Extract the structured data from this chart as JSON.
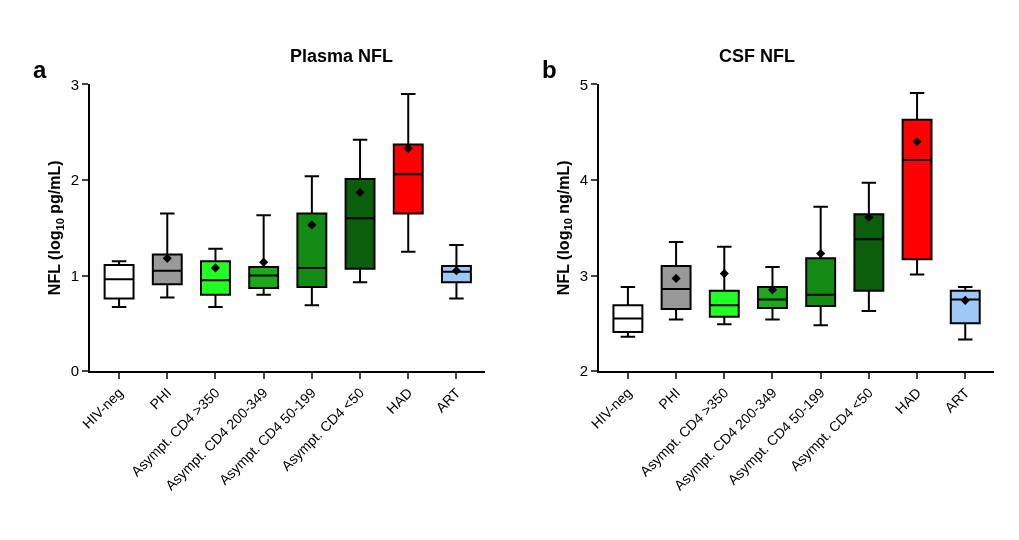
{
  "chart_data": [
    {
      "type": "box",
      "title": "Plasma NFL",
      "ylabel": "NFL (log$_{10}$ pg/mL)",
      "annotations": [
        "a"
      ],
      "categories": [
        "HIV-neg",
        "PHI",
        "Asympt. CD4 >350",
        "Asympt. CD4 200-349",
        "Asympt. CD4 50-199",
        "Asympt. CD4 <50",
        "HAD",
        "ART"
      ],
      "colors": [
        "#ffffff",
        "#999999",
        "#22ff22",
        "#1ea81e",
        "#138a13",
        "#0b5e0b",
        "#ff0000",
        "#9ec8f5"
      ],
      "boxes": [
        {
          "low": 0.67,
          "q1": 0.76,
          "median": 0.96,
          "q3": 1.11,
          "high": 1.15
        },
        {
          "low": 0.77,
          "q1": 0.91,
          "median": 1.05,
          "q3": 1.22,
          "high": 1.65,
          "mean": 1.18
        },
        {
          "low": 0.67,
          "q1": 0.8,
          "median": 0.95,
          "q3": 1.15,
          "high": 1.28,
          "mean": 1.08
        },
        {
          "low": 0.8,
          "q1": 0.87,
          "median": 1.0,
          "q3": 1.09,
          "high": 1.63,
          "mean": 1.14
        },
        {
          "low": 0.69,
          "q1": 0.88,
          "median": 1.08,
          "q3": 1.65,
          "high": 2.04,
          "mean": 1.53
        },
        {
          "low": 0.93,
          "q1": 1.07,
          "median": 1.6,
          "q3": 2.01,
          "high": 2.42,
          "mean": 1.87
        },
        {
          "low": 1.25,
          "q1": 1.65,
          "median": 2.06,
          "q3": 2.37,
          "high": 2.9,
          "mean": 2.33
        },
        {
          "low": 0.76,
          "q1": 0.93,
          "median": 1.04,
          "q3": 1.1,
          "high": 1.32,
          "mean": 1.05
        }
      ],
      "ylim": [
        0,
        3
      ],
      "yticks": [
        0,
        1,
        2,
        3
      ],
      "marker": "diamond"
    },
    {
      "type": "box",
      "title": "CSF NFL",
      "ylabel": "NFL (log$_{10}$ ng/mL)",
      "annotations": [
        "b"
      ],
      "categories": [
        "HIV-neg",
        "PHI",
        "Asympt. CD4 >350",
        "Asympt. CD4 200-349",
        "Asympt. CD4 50-199",
        "Asympt. CD4 <50",
        "HAD",
        "ART"
      ],
      "colors": [
        "#ffffff",
        "#999999",
        "#22ff22",
        "#1ea81e",
        "#138a13",
        "#0b5e0b",
        "#ff0000",
        "#9ec8f5"
      ],
      "boxes": [
        {
          "low": 2.36,
          "q1": 2.41,
          "median": 2.55,
          "q3": 2.69,
          "high": 2.88
        },
        {
          "low": 2.54,
          "q1": 2.65,
          "median": 2.86,
          "q3": 3.1,
          "high": 3.35,
          "mean": 2.97
        },
        {
          "low": 2.49,
          "q1": 2.57,
          "median": 2.69,
          "q3": 2.84,
          "high": 3.3,
          "mean": 3.02
        },
        {
          "low": 2.54,
          "q1": 2.66,
          "median": 2.75,
          "q3": 2.88,
          "high": 3.09,
          "mean": 2.85
        },
        {
          "low": 2.48,
          "q1": 2.68,
          "median": 2.8,
          "q3": 3.18,
          "high": 3.72,
          "mean": 3.23
        },
        {
          "low": 2.63,
          "q1": 2.84,
          "median": 3.38,
          "q3": 3.64,
          "high": 3.97,
          "mean": 3.61
        },
        {
          "low": 3.01,
          "q1": 3.17,
          "median": 4.21,
          "q3": 4.63,
          "high": 4.91,
          "mean": 4.4
        },
        {
          "low": 2.33,
          "q1": 2.5,
          "median": 2.75,
          "q3": 2.84,
          "high": 2.88,
          "mean": 2.74
        }
      ],
      "ylim": [
        2,
        5
      ],
      "yticks": [
        2,
        3,
        4,
        5
      ],
      "marker": "diamond"
    }
  ]
}
